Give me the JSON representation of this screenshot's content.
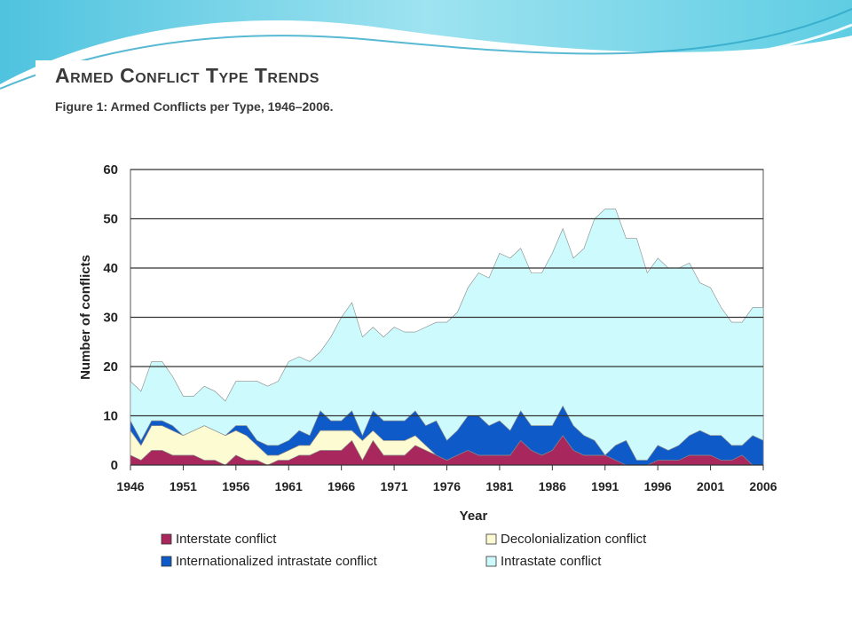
{
  "slide": {
    "title": "Armed Conflict Type Trends",
    "caption": "Figure 1: Armed Conflicts per Type, 1946–2006."
  },
  "colors": {
    "interstate": "#a8285e",
    "decolonialization": "#fdfbd2",
    "internationalized": "#0e5ac9",
    "intrastate": "#cdfafc",
    "outline": "#888888",
    "grid": "#333333",
    "slide_accent": "#1aa6c9"
  },
  "chart_data": {
    "type": "area",
    "stacked": true,
    "title": "",
    "xlabel": "Year",
    "ylabel": "Number of conflicts",
    "xlim": [
      1946,
      2006
    ],
    "ylim": [
      0,
      60
    ],
    "yticks": [
      0,
      10,
      20,
      30,
      40,
      50,
      60
    ],
    "xticks": [
      1946,
      1951,
      1956,
      1961,
      1966,
      1971,
      1976,
      1981,
      1986,
      1991,
      1996,
      2001,
      2006
    ],
    "grid": "horizontal",
    "legend_position": "bottom",
    "x": [
      1946,
      1947,
      1948,
      1949,
      1950,
      1951,
      1952,
      1953,
      1954,
      1955,
      1956,
      1957,
      1958,
      1959,
      1960,
      1961,
      1962,
      1963,
      1964,
      1965,
      1966,
      1967,
      1968,
      1969,
      1970,
      1971,
      1972,
      1973,
      1974,
      1975,
      1976,
      1977,
      1978,
      1979,
      1980,
      1981,
      1982,
      1983,
      1984,
      1985,
      1986,
      1987,
      1988,
      1989,
      1990,
      1991,
      1992,
      1993,
      1994,
      1995,
      1996,
      1997,
      1998,
      1999,
      2000,
      2001,
      2002,
      2003,
      2004,
      2005,
      2006
    ],
    "series": [
      {
        "name": "Interstate conflict",
        "key": "interstate",
        "values": [
          2,
          1,
          3,
          3,
          2,
          2,
          2,
          1,
          1,
          0,
          2,
          1,
          1,
          0,
          1,
          1,
          2,
          2,
          3,
          3,
          3,
          5,
          1,
          5,
          2,
          2,
          2,
          4,
          3,
          2,
          1,
          2,
          3,
          2,
          2,
          2,
          2,
          5,
          3,
          2,
          3,
          6,
          3,
          2,
          2,
          2,
          1,
          0,
          0,
          0,
          1,
          1,
          1,
          2,
          2,
          2,
          1,
          1,
          2,
          0,
          0
        ]
      },
      {
        "name": "Decolonialization conflict",
        "key": "decolonialization",
        "values": [
          5,
          3,
          5,
          5,
          5,
          4,
          5,
          7,
          6,
          6,
          5,
          5,
          3,
          2,
          1,
          2,
          2,
          2,
          4,
          4,
          4,
          2,
          4,
          2,
          3,
          3,
          3,
          2,
          1,
          0,
          0,
          0,
          0,
          0,
          0,
          0,
          0,
          0,
          0,
          0,
          0,
          0,
          0,
          0,
          0,
          0,
          0,
          0,
          0,
          0,
          0,
          0,
          0,
          0,
          0,
          0,
          0,
          0,
          0,
          0,
          0
        ]
      },
      {
        "name": "Internationalized intrastate conflict",
        "key": "internationalized",
        "values": [
          2,
          1,
          1,
          1,
          1,
          0,
          0,
          0,
          0,
          0,
          1,
          2,
          1,
          2,
          2,
          2,
          3,
          2,
          4,
          2,
          2,
          4,
          1,
          4,
          4,
          4,
          4,
          5,
          4,
          7,
          4,
          5,
          7,
          8,
          6,
          7,
          5,
          6,
          5,
          6,
          5,
          6,
          5,
          4,
          3,
          0,
          3,
          5,
          1,
          1,
          3,
          2,
          3,
          4,
          5,
          4,
          5,
          3,
          2,
          6,
          5
        ]
      },
      {
        "name": "Intrastate conflict",
        "key": "intrastate",
        "values": [
          8,
          10,
          12,
          12,
          10,
          8,
          7,
          8,
          8,
          7,
          9,
          9,
          12,
          12,
          13,
          16,
          15,
          15,
          12,
          17,
          21,
          22,
          20,
          17,
          17,
          19,
          18,
          16,
          20,
          20,
          24,
          24,
          26,
          29,
          30,
          34,
          35,
          33,
          31,
          31,
          35,
          36,
          34,
          38,
          45,
          50,
          48,
          41,
          45,
          38,
          38,
          37,
          36,
          35,
          30,
          30,
          26,
          25,
          25,
          26,
          27
        ]
      }
    ]
  }
}
